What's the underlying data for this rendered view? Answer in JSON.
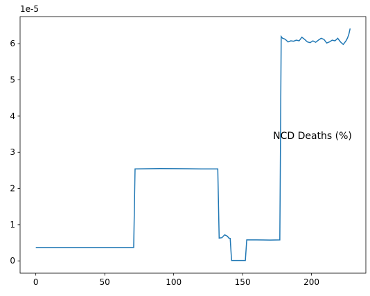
{
  "chart_data": {
    "type": "line",
    "offset_label": "1e-5",
    "annotation": "NCD Deaths (%)",
    "x": [
      0,
      71,
      72,
      90,
      110,
      120,
      132,
      133,
      135,
      137,
      139,
      140,
      141,
      142,
      152,
      153,
      160,
      170,
      177,
      178,
      179,
      180,
      181,
      183,
      185,
      187,
      189,
      191,
      193,
      195,
      197,
      199,
      201,
      203,
      205,
      207,
      209,
      211,
      213,
      215,
      217,
      219,
      221,
      223,
      225,
      226,
      227,
      228
    ],
    "series": [
      {
        "color": "#1f77b4",
        "values": [
          0.37,
          0.37,
          2.54,
          2.55,
          2.545,
          2.54,
          2.54,
          0.63,
          0.64,
          0.72,
          0.68,
          0.63,
          0.62,
          0.01,
          0.01,
          0.58,
          0.58,
          0.575,
          0.58,
          6.2,
          6.15,
          6.14,
          6.12,
          6.05,
          6.08,
          6.07,
          6.1,
          6.08,
          6.18,
          6.12,
          6.05,
          6.03,
          6.08,
          6.04,
          6.1,
          6.15,
          6.12,
          6.02,
          6.05,
          6.1,
          6.08,
          6.15,
          6.05,
          5.98,
          6.08,
          6.15,
          6.25,
          6.42
        ]
      }
    ],
    "xlim": [
      -11.4,
      239.4
    ],
    "xticks": [
      0,
      50,
      100,
      150,
      200
    ],
    "ylim": [
      -0.34,
      6.75
    ],
    "yticks": [
      0,
      1,
      2,
      3,
      4,
      5,
      6
    ],
    "grid": false
  }
}
